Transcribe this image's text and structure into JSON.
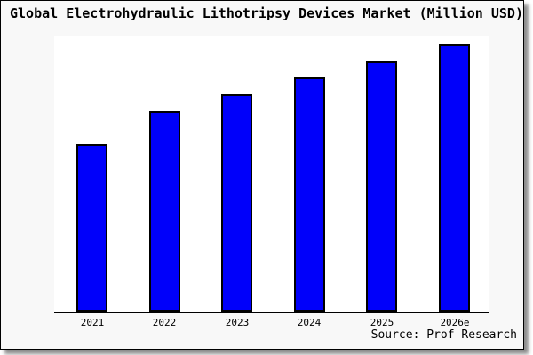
{
  "title": "Global Electrohydraulic Lithotripsy Devices Market (Million USD)",
  "source_caption": "Source: Prof Research",
  "colors": {
    "bar_fill": "#0000fa",
    "bar_border": "#000000",
    "frame_background": "#f8f8f8",
    "plot_background": "#ffffff",
    "axis": "#000000",
    "text": "#000000"
  },
  "chart_data": {
    "type": "bar",
    "title": "Global Electrohydraulic Lithotripsy Devices Market (Million USD)",
    "categories": [
      "2021",
      "2022",
      "2023",
      "2024",
      "2025",
      "2026e"
    ],
    "values": [
      61,
      73,
      79,
      85,
      91,
      97
    ],
    "units": "Million USD",
    "xlabel": "",
    "ylabel": "",
    "ylim": [
      0,
      100
    ],
    "grid": false,
    "legend": false,
    "y_axis_labels_shown": false,
    "source": "Source: Prof Research"
  }
}
